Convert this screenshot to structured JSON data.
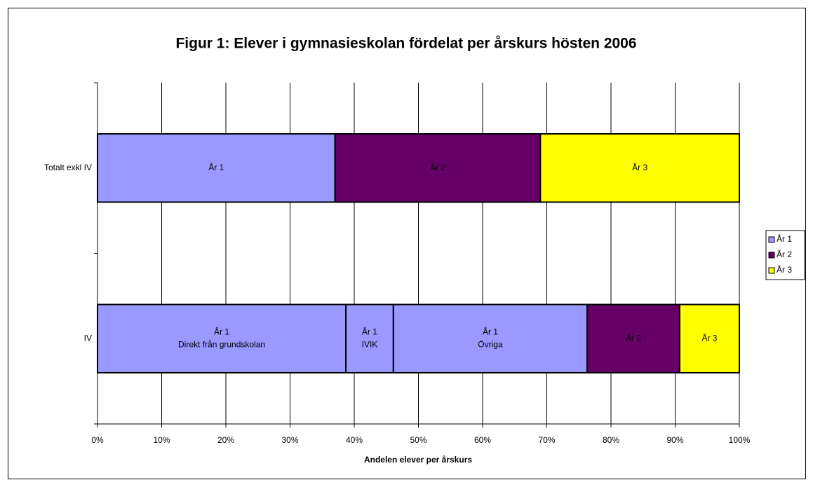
{
  "chart_data": {
    "type": "bar",
    "orientation": "horizontal",
    "stacked": true,
    "title": "Figur 1: Elever i gymnasieskolan fördelat per årskurs hösten 2006",
    "x_label": "Andelen elever per årskurs",
    "xlim": [
      0,
      100
    ],
    "xticks": [
      {
        "value": 0,
        "label": "0%"
      },
      {
        "value": 10,
        "label": "10%"
      },
      {
        "value": 20,
        "label": "20%"
      },
      {
        "value": 30,
        "label": "30%"
      },
      {
        "value": 40,
        "label": "40%"
      },
      {
        "value": 50,
        "label": "50%"
      },
      {
        "value": 60,
        "label": "60%"
      },
      {
        "value": 70,
        "label": "70%"
      },
      {
        "value": 80,
        "label": "80%"
      },
      {
        "value": 90,
        "label": "90%"
      },
      {
        "value": 100,
        "label": "100%"
      }
    ],
    "grid": true,
    "bars": [
      {
        "category": "Totalt exkl IV",
        "segments": [
          {
            "label": [
              "År 1"
            ],
            "value": 37,
            "color": "#9999ff"
          },
          {
            "label": [
              "År 2"
            ],
            "value": 32,
            "color": "#660066"
          },
          {
            "label": [
              "År 3"
            ],
            "value": 31,
            "color": "#ffff00"
          }
        ]
      },
      {
        "category": "IV",
        "segments": [
          {
            "label": [
              "År 1",
              "Direkt från grundskolan"
            ],
            "value": 38.7,
            "color": "#9999ff"
          },
          {
            "label": [
              "År 1",
              "IVIK"
            ],
            "value": 7.4,
            "color": "#9999ff"
          },
          {
            "label": [
              "År 1",
              "Övriga"
            ],
            "value": 30.2,
            "color": "#9999ff"
          },
          {
            "label": [
              "År 2"
            ],
            "value": 14.4,
            "color": "#660066"
          },
          {
            "label": [
              "År 3"
            ],
            "value": 9.3,
            "color": "#ffff00"
          }
        ]
      }
    ],
    "legend": [
      {
        "name": "År 1",
        "color": "#9999ff"
      },
      {
        "name": "År 2",
        "color": "#660066"
      },
      {
        "name": "År 3",
        "color": "#ffff00"
      }
    ],
    "legend_position": "right"
  }
}
